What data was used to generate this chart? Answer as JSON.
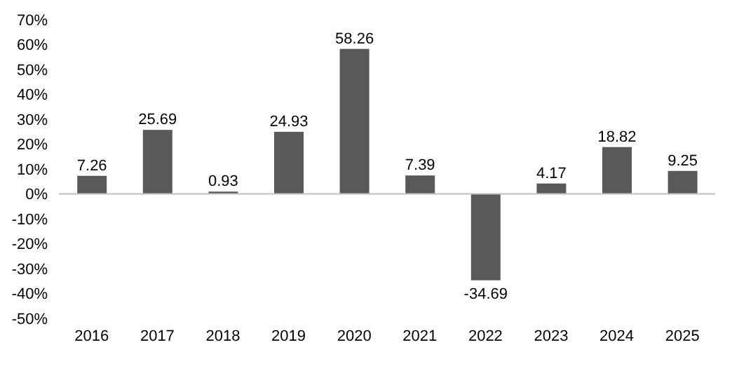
{
  "chart_data": {
    "type": "bar",
    "categories": [
      "2016",
      "2017",
      "2018",
      "2019",
      "2020",
      "2021",
      "2022",
      "2023",
      "2024",
      "2025"
    ],
    "values": [
      7.26,
      25.69,
      0.93,
      24.93,
      58.26,
      7.39,
      -34.69,
      4.17,
      18.82,
      9.25
    ],
    "color": "#595959",
    "data_labels": true,
    "grid": false,
    "legend": false,
    "ylim": [
      -50,
      70
    ],
    "ref_lines": [
      {
        "axis": "y",
        "value": 0,
        "color": "#bfbfbf"
      }
    ],
    "yticks": [
      {
        "value": -50,
        "label": "-50%"
      },
      {
        "value": -40,
        "label": "-40%"
      },
      {
        "value": -30,
        "label": "-30%"
      },
      {
        "value": -20,
        "label": "-20%"
      },
      {
        "value": -10,
        "label": "-10%"
      },
      {
        "value": 0,
        "label": "0%"
      },
      {
        "value": 10,
        "label": "10%"
      },
      {
        "value": 20,
        "label": "20%"
      },
      {
        "value": 30,
        "label": "30%"
      },
      {
        "value": 40,
        "label": "40%"
      },
      {
        "value": 50,
        "label": "50%"
      },
      {
        "value": 60,
        "label": "60%"
      },
      {
        "value": 70,
        "label": "70%"
      }
    ]
  }
}
